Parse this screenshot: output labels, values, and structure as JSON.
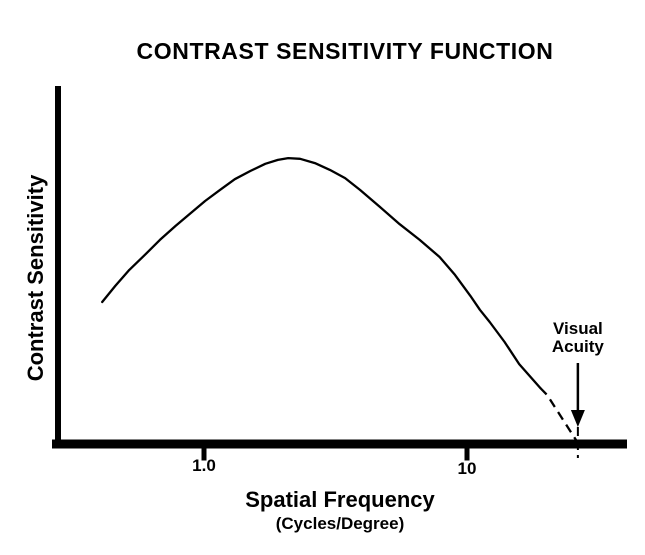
{
  "figure": {
    "background": "#ffffff",
    "ink_color": "#000000"
  },
  "chart_data": {
    "type": "line",
    "title": "CONTRAST SENSITIVITY FUNCTION",
    "xlabel": "Spatial Frequency",
    "xlabel_units": "(Cycles/Degree)",
    "ylabel": "Contrast Sensitivity",
    "x_scale": "log",
    "x_ticks": [
      {
        "label": "1.0",
        "value": 1.0
      },
      {
        "label": "10",
        "value": 10
      }
    ],
    "y_ticks": [],
    "grid": false,
    "legend": false,
    "annotations": [
      {
        "text_line1": "Visual",
        "text_line2": "Acuity",
        "x_value": 26.4,
        "marker": "down-arrow with dashed tick where dashed curve meets x-axis"
      }
    ],
    "series": [
      {
        "name": "contrast-sensitivity-function",
        "line_style": "solid, dashed high-frequency extrapolation",
        "x_units": "cycles/degree",
        "y_units": "relative contrast sensitivity (axis unlabeled, 0-1 of plot height)",
        "points": [
          [
            0.41,
            0.395
          ],
          [
            0.46,
            0.44
          ],
          [
            0.52,
            0.485
          ],
          [
            0.6,
            0.529
          ],
          [
            0.68,
            0.569
          ],
          [
            0.78,
            0.608
          ],
          [
            0.89,
            0.644
          ],
          [
            1.01,
            0.678
          ],
          [
            1.15,
            0.709
          ],
          [
            1.31,
            0.739
          ],
          [
            1.5,
            0.762
          ],
          [
            1.71,
            0.782
          ],
          [
            1.91,
            0.793
          ],
          [
            2.09,
            0.798
          ],
          [
            2.32,
            0.796
          ],
          [
            2.64,
            0.784
          ],
          [
            3.01,
            0.765
          ],
          [
            3.44,
            0.742
          ],
          [
            3.92,
            0.709
          ],
          [
            4.67,
            0.661
          ],
          [
            5.55,
            0.613
          ],
          [
            6.61,
            0.569
          ],
          [
            7.87,
            0.521
          ],
          [
            9.0,
            0.471
          ],
          [
            10.3,
            0.412
          ],
          [
            11.2,
            0.373
          ],
          [
            12.2,
            0.339
          ],
          [
            13.9,
            0.283
          ],
          [
            15.8,
            0.221
          ],
          [
            19.0,
            0.154
          ]
        ],
        "dashed_extension": [
          [
            19.0,
            0.154
          ],
          [
            20.2,
            0.134
          ],
          [
            26.4,
            0.0
          ]
        ],
        "peak": {
          "x": 2.1,
          "y": 0.8
        },
        "x_intercept_of_dashed_segment": 26.4
      }
    ]
  }
}
